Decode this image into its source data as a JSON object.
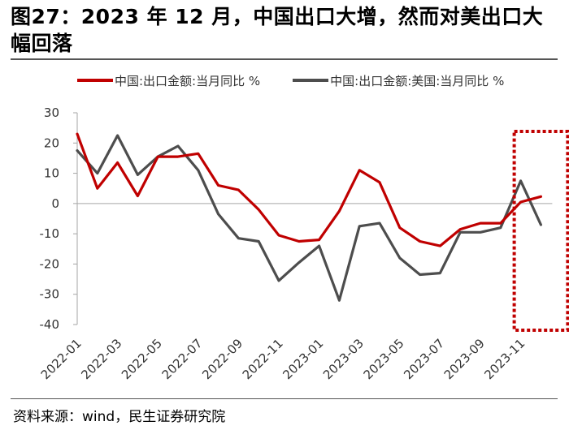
{
  "figure": {
    "title": "图27：2023 年 12 月，中国出口大增，然而对美出口大幅回落",
    "source": "资料来源：wind，民生证券研究院"
  },
  "colors": {
    "series_china": "#c00000",
    "series_us": "#4d4d4d",
    "highlight_box": "#c00000"
  },
  "chart_data": {
    "type": "line",
    "x": [
      "2022-01",
      "2022-02",
      "2022-03",
      "2022-04",
      "2022-05",
      "2022-06",
      "2022-07",
      "2022-08",
      "2022-09",
      "2022-10",
      "2022-11",
      "2022-12",
      "2023-01",
      "2023-02",
      "2023-03",
      "2023-04",
      "2023-05",
      "2023-06",
      "2023-07",
      "2023-08",
      "2023-09",
      "2023-10",
      "2023-11",
      "2023-12"
    ],
    "x_tick_labels": [
      "2022-01",
      "2022-03",
      "2022-05",
      "2022-07",
      "2022-09",
      "2022-11",
      "2023-01",
      "2023-03",
      "2023-05",
      "2023-07",
      "2023-09",
      "2023-11"
    ],
    "series": [
      {
        "name": "中国:出口金额:当月同比 %",
        "values": [
          23,
          5,
          13.5,
          2.5,
          15.5,
          15.5,
          16.5,
          6,
          4.5,
          -2,
          -10.5,
          -12.5,
          -12,
          -2.5,
          11,
          7,
          -8,
          -12.5,
          -14,
          -8.5,
          -6.5,
          -6.5,
          0.5,
          2.3
        ]
      },
      {
        "name": "中国:出口金额:美国:当月同比 %",
        "values": [
          17.5,
          10,
          22.5,
          9.5,
          15.5,
          19,
          11,
          -3.5,
          -11.5,
          -12.5,
          -25.5,
          -19.5,
          -14,
          -32,
          -7.5,
          -6.5,
          -18,
          -23.5,
          -23,
          -9.5,
          -9.5,
          -8,
          7.5,
          -7
        ]
      }
    ],
    "ylim": [
      -40,
      30
    ],
    "y_ticks": [
      30,
      20,
      10,
      0,
      -10,
      -20,
      -30,
      -40
    ],
    "grid": false,
    "legend": "top",
    "highlight_range": [
      "2023-11",
      "2023-12"
    ]
  }
}
